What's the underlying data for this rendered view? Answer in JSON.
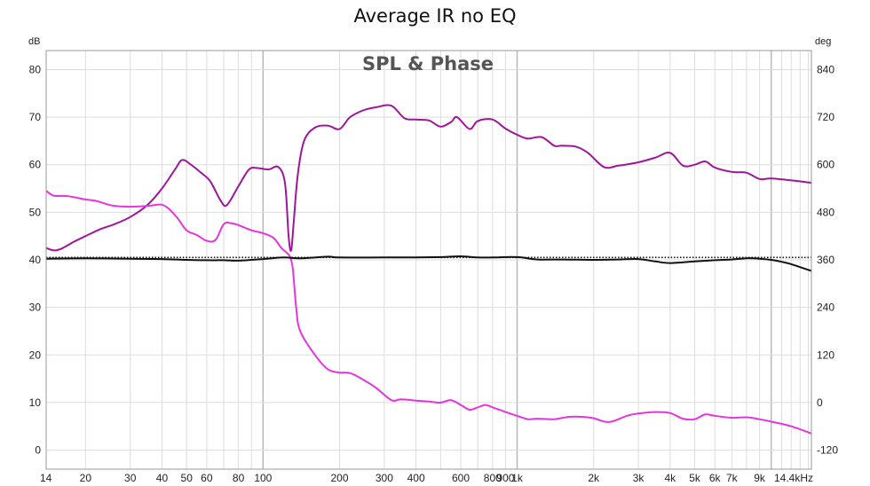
{
  "title": "Average IR no EQ",
  "chart_data": {
    "type": "line",
    "title": "Average IR no EQ",
    "subtitle": "SPL & Phase",
    "x_scale": "log",
    "xlim": [
      14,
      14400
    ],
    "x_unit": "kHz",
    "xtick_labels": [
      {
        "v": 14,
        "label": "14"
      },
      {
        "v": 20,
        "label": "20"
      },
      {
        "v": 30,
        "label": "30"
      },
      {
        "v": 40,
        "label": "40"
      },
      {
        "v": 50,
        "label": "50"
      },
      {
        "v": 60,
        "label": "60"
      },
      {
        "v": 80,
        "label": "80"
      },
      {
        "v": 100,
        "label": "100"
      },
      {
        "v": 200,
        "label": "200"
      },
      {
        "v": 300,
        "label": "300"
      },
      {
        "v": 400,
        "label": "400"
      },
      {
        "v": 600,
        "label": "600"
      },
      {
        "v": 800,
        "label": "800"
      },
      {
        "v": 900,
        "label": "900"
      },
      {
        "v": 1000,
        "label": "1k"
      },
      {
        "v": 2000,
        "label": "2k"
      },
      {
        "v": 3000,
        "label": "3k"
      },
      {
        "v": 4000,
        "label": "4k"
      },
      {
        "v": 5000,
        "label": "5k"
      },
      {
        "v": 6000,
        "label": "6k"
      },
      {
        "v": 7000,
        "label": "7k"
      },
      {
        "v": 9000,
        "label": "9k"
      },
      {
        "v": 14400,
        "label": "14.4kHz"
      }
    ],
    "y_left": {
      "unit": "dB",
      "lim": [
        -4,
        84
      ],
      "ticks": [
        0,
        10,
        20,
        30,
        40,
        50,
        60,
        70,
        80
      ]
    },
    "y_right": {
      "unit": "deg",
      "lim": [
        -168,
        888
      ],
      "ticks": [
        -120,
        0,
        120,
        240,
        360,
        480,
        600,
        720,
        840
      ]
    },
    "grid": true,
    "series": [
      {
        "axis": "left",
        "color": "#a0169a",
        "x": [
          14,
          15,
          16,
          18,
          20,
          23,
          26,
          30,
          35,
          40,
          45,
          48,
          52,
          57,
          62,
          68,
          72,
          80,
          88,
          95,
          105,
          115,
          122,
          126,
          129,
          132,
          137,
          145,
          160,
          180,
          200,
          220,
          250,
          280,
          320,
          360,
          400,
          450,
          500,
          550,
          580,
          650,
          700,
          800,
          900,
          1000,
          1100,
          1250,
          1400,
          1500,
          1700,
          1900,
          2200,
          2500,
          3000,
          3500,
          4000,
          4500,
          5000,
          5500,
          6000,
          7000,
          8000,
          9000,
          10000,
          12000,
          14400
        ],
        "y": [
          42.5,
          42,
          42.3,
          43.8,
          45,
          46.5,
          47.5,
          49,
          51.5,
          55,
          59,
          61,
          60,
          58.3,
          56.5,
          52.5,
          51.5,
          55.5,
          59,
          59.3,
          59,
          59.5,
          56,
          45,
          42,
          48,
          58,
          65,
          67.8,
          68.2,
          67.5,
          70,
          71.5,
          72.1,
          72.4,
          69.8,
          69.5,
          69.3,
          68,
          69,
          70,
          67.5,
          69.2,
          69.5,
          67.6,
          66.3,
          65.5,
          65.8,
          64,
          64,
          63.8,
          62.5,
          59.5,
          59.8,
          60.5,
          61.5,
          62.5,
          59.8,
          60,
          60.7,
          59.4,
          58.5,
          58.3,
          57,
          57.1,
          56.7,
          56.2
        ]
      },
      {
        "axis": "left",
        "color": "#e535e0",
        "x": [
          14,
          15,
          17,
          20,
          22,
          25,
          28,
          32,
          36,
          40,
          43,
          46,
          50,
          55,
          60,
          65,
          70,
          75,
          80,
          90,
          100,
          110,
          118,
          124,
          128,
          131,
          135,
          140,
          160,
          180,
          200,
          220,
          250,
          280,
          320,
          350,
          400,
          450,
          500,
          550,
          600,
          650,
          700,
          750,
          800,
          900,
          1000,
          1100,
          1200,
          1400,
          1600,
          1800,
          2000,
          2300,
          2700,
          3000,
          3500,
          4000,
          4500,
          5000,
          5500,
          6000,
          7000,
          8000,
          9000,
          10000,
          12000,
          14400
        ],
        "y": [
          54.5,
          53.5,
          53.4,
          52.7,
          52.4,
          51.5,
          51.2,
          51.2,
          51.4,
          51.6,
          50.5,
          48.8,
          46.2,
          45.2,
          44,
          44.2,
          47.5,
          47.7,
          47.3,
          46.2,
          45.6,
          44.6,
          42.5,
          41.5,
          40.5,
          38,
          30,
          25,
          20,
          17,
          16.3,
          16.2,
          14.7,
          13,
          10.5,
          10.7,
          10.4,
          10.2,
          10,
          10.5,
          9.5,
          8.5,
          9,
          9.5,
          9,
          8,
          7.2,
          6.5,
          6.6,
          6.5,
          7,
          7,
          6.7,
          5.9,
          7.2,
          7.7,
          8,
          7.8,
          6.6,
          6.5,
          7.5,
          7.2,
          6.8,
          6.9,
          6.5,
          6,
          5,
          3.5
        ]
      },
      {
        "axis": "right",
        "color": "#111111",
        "x": [
          14,
          20,
          30,
          40,
          50,
          60,
          70,
          80,
          100,
          120,
          140,
          180,
          200,
          300,
          400,
          500,
          600,
          700,
          800,
          1000,
          1200,
          1500,
          2000,
          2500,
          3000,
          3500,
          4000,
          5000,
          6000,
          7000,
          8000,
          9000,
          10000,
          11000,
          12000,
          14400
        ],
        "y": [
          363,
          364,
          363,
          362,
          360,
          359,
          359,
          358,
          362,
          366,
          364,
          368,
          366,
          366,
          366,
          367,
          369,
          366,
          366,
          367,
          361,
          361,
          360,
          361,
          362,
          356,
          352,
          356,
          359,
          361,
          364,
          363,
          360,
          355,
          349,
          332
        ]
      },
      {
        "axis": "right",
        "color": "#111111",
        "dash": "dotted",
        "x": [
          14,
          14400
        ],
        "y": [
          366,
          366
        ]
      }
    ]
  }
}
